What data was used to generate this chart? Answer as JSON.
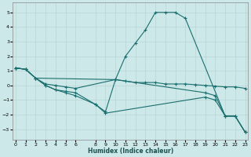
{
  "xlabel": "Humidex (Indice chaleur)",
  "ylabel": "",
  "background_color": "#cde8e8",
  "grid_color": "#b8d4d4",
  "line_color": "#1a6e6e",
  "lines": [
    {
      "x": [
        0,
        1,
        2,
        10,
        11,
        12,
        13,
        14,
        15,
        16,
        17,
        21,
        22,
        23
      ],
      "y": [
        1.2,
        1.1,
        0.5,
        0.4,
        2.0,
        2.9,
        3.8,
        5.0,
        5.0,
        5.0,
        4.6,
        -2.1,
        -2.1,
        -3.2
      ]
    },
    {
      "x": [
        0,
        1,
        2,
        3,
        4,
        5,
        6,
        10,
        11,
        12,
        13,
        14,
        15,
        16,
        17,
        18,
        19,
        20,
        21,
        22,
        23
      ],
      "y": [
        1.2,
        1.1,
        0.5,
        0.1,
        0.0,
        -0.1,
        -0.2,
        0.4,
        0.3,
        0.2,
        0.2,
        0.2,
        0.1,
        0.1,
        0.1,
        0.05,
        0.0,
        -0.05,
        -0.1,
        -0.1,
        -0.2
      ]
    },
    {
      "x": [
        0,
        1,
        2,
        3,
        4,
        5,
        6,
        8,
        9,
        10,
        19,
        20,
        21,
        22,
        23
      ],
      "y": [
        1.2,
        1.1,
        0.5,
        0.0,
        -0.3,
        -0.4,
        -0.5,
        -1.3,
        -1.8,
        0.4,
        -0.5,
        -0.7,
        -2.1,
        -2.1,
        -3.2
      ]
    },
    {
      "x": [
        0,
        1,
        2,
        3,
        4,
        5,
        6,
        8,
        9,
        19,
        20,
        21,
        22,
        23
      ],
      "y": [
        1.2,
        1.1,
        0.5,
        0.0,
        -0.3,
        -0.5,
        -0.7,
        -1.3,
        -1.9,
        -0.8,
        -1.0,
        -2.1,
        -2.1,
        -3.2
      ]
    }
  ],
  "xlim": [
    -0.3,
    23.3
  ],
  "ylim": [
    -3.7,
    5.7
  ],
  "xticks": [
    0,
    1,
    2,
    3,
    4,
    5,
    6,
    8,
    9,
    10,
    11,
    12,
    13,
    14,
    15,
    16,
    17,
    18,
    19,
    20,
    21,
    22,
    23
  ],
  "yticks": [
    -3,
    -2,
    -1,
    0,
    1,
    2,
    3,
    4,
    5
  ],
  "xlabel_fontsize": 5.5,
  "tick_fontsize": 4.5,
  "linewidth": 0.8,
  "markersize": 2.0
}
